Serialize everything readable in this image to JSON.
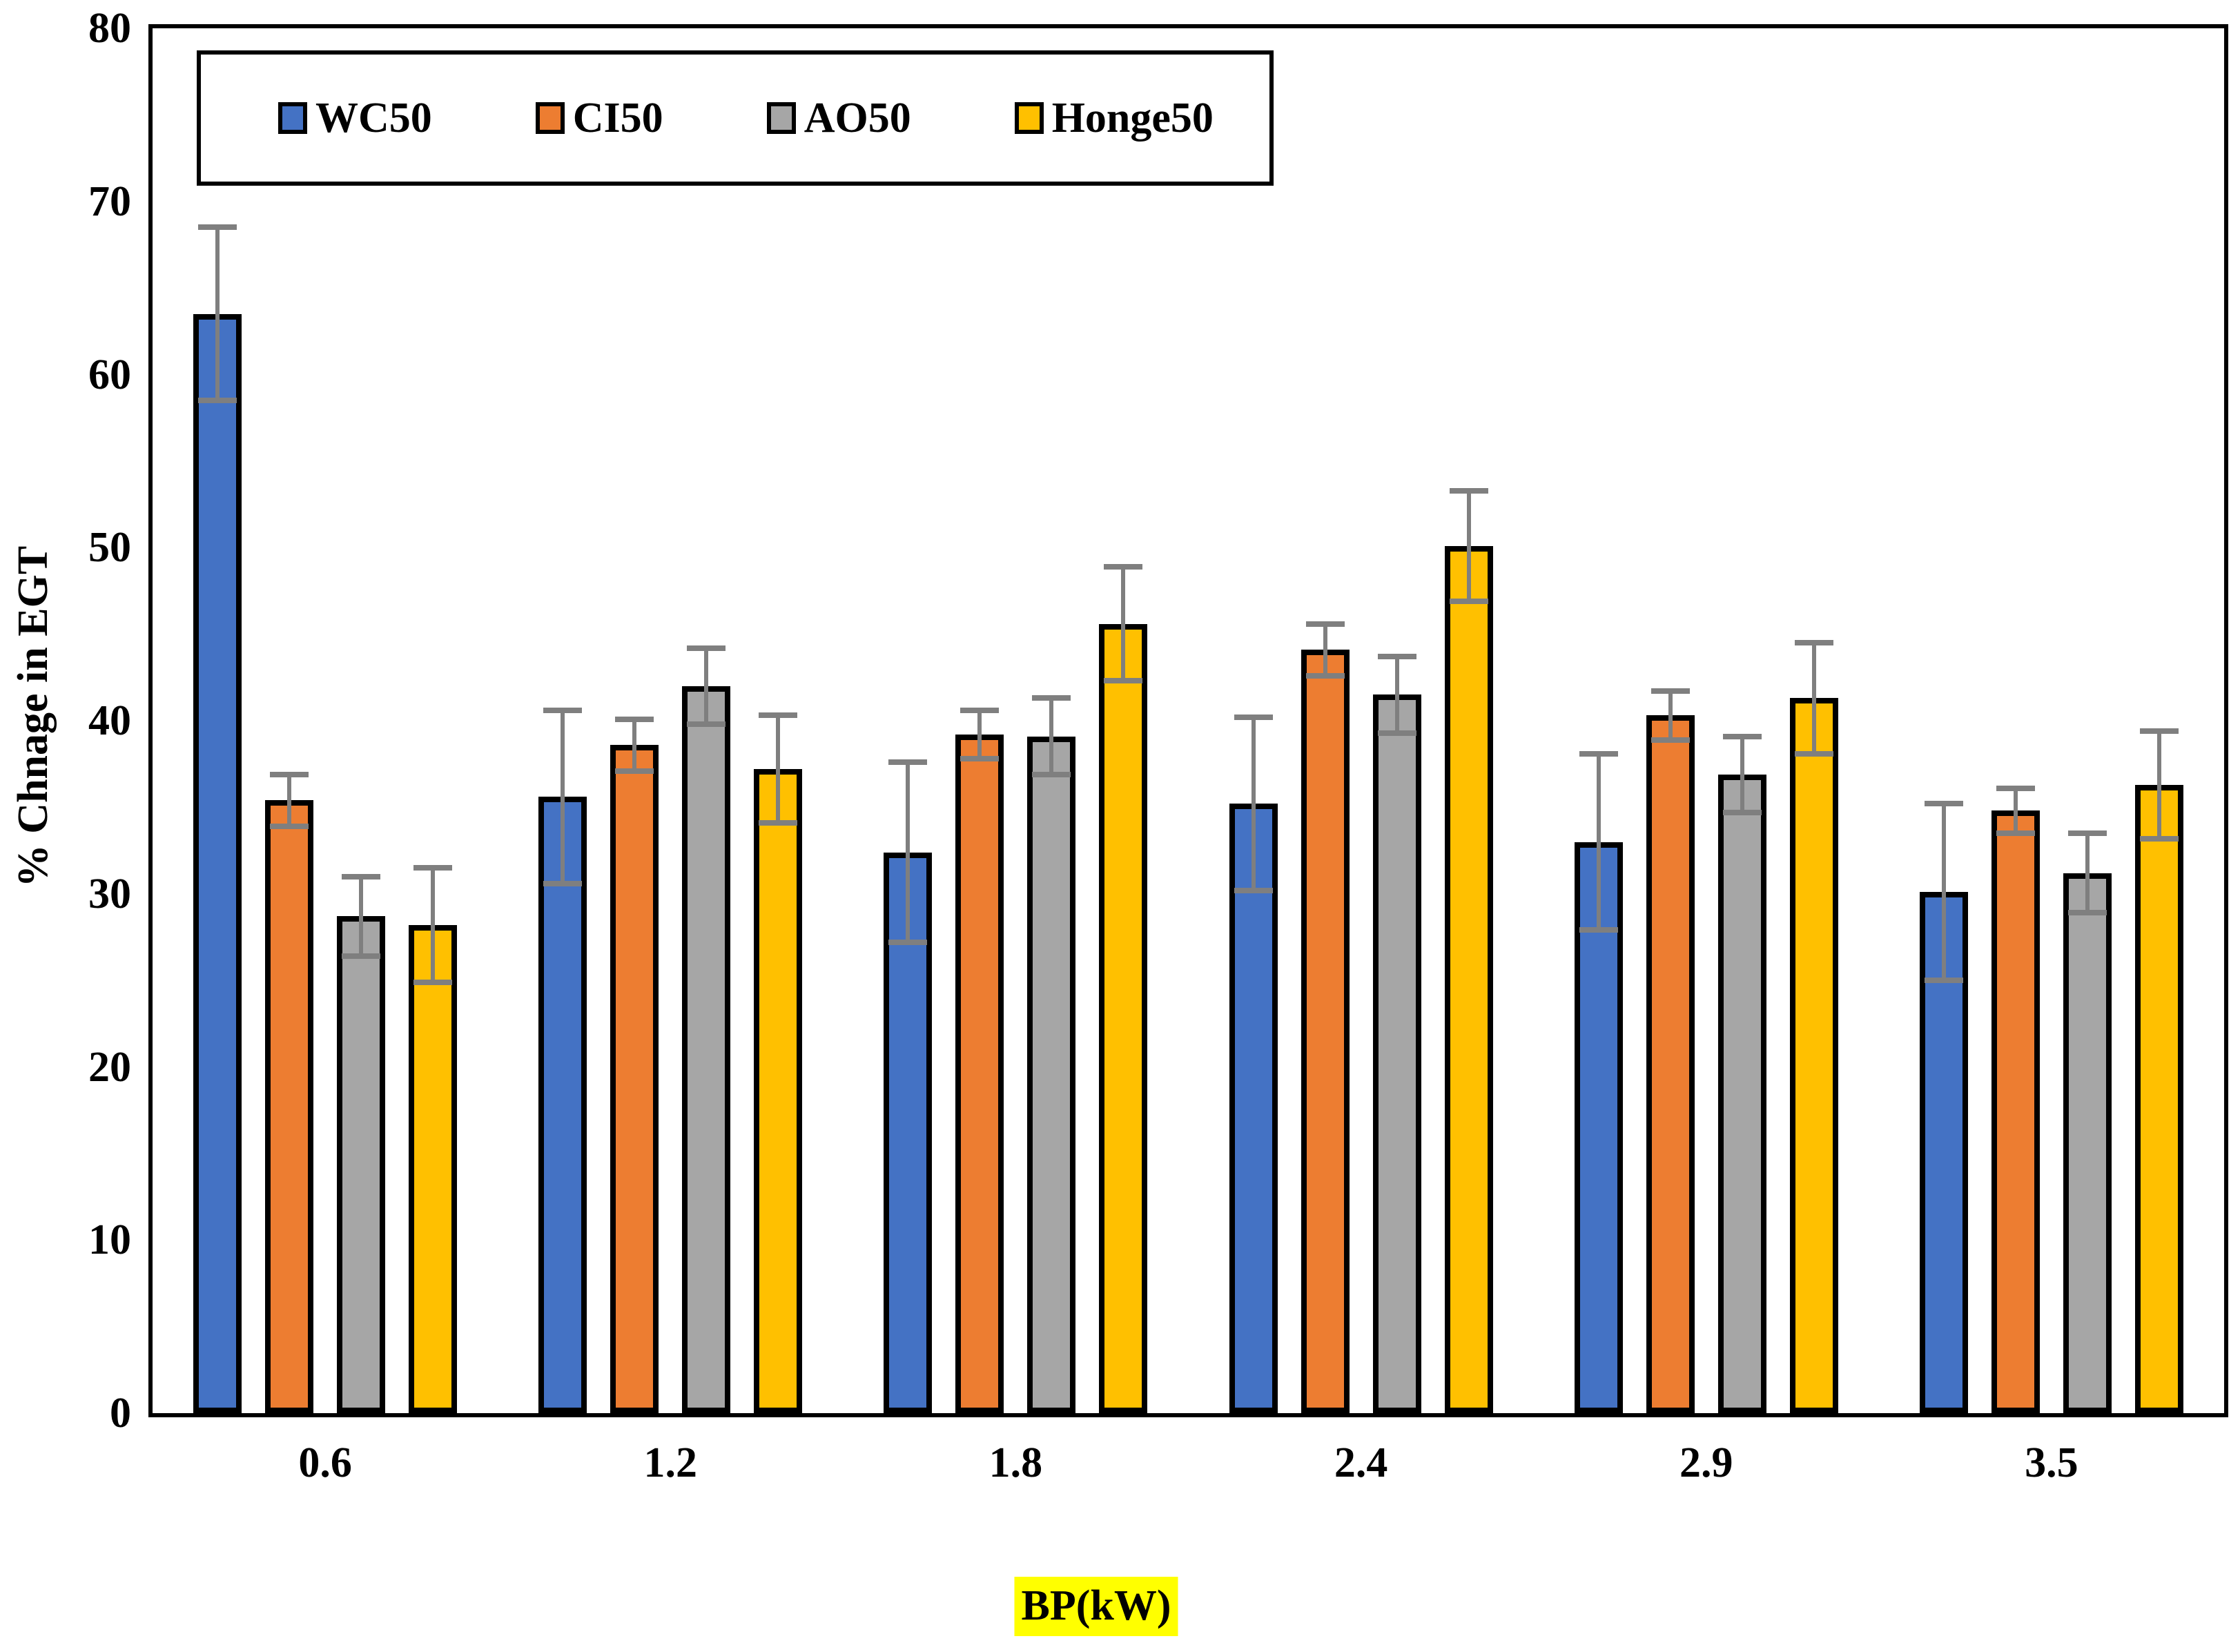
{
  "chart_data": {
    "type": "bar",
    "title": "",
    "xlabel": "BP(kW)",
    "ylabel": "% Chnage in EGT",
    "categories": [
      "0.6",
      "1.2",
      "1.8",
      "2.4",
      "2.9",
      "3.5"
    ],
    "series": [
      {
        "name": "WC50",
        "color": "#4472C4",
        "values": [
          63.5,
          35.6,
          32.4,
          35.2,
          33.0,
          30.1
        ],
        "errors": [
          5.0,
          5.0,
          5.2,
          5.0,
          5.1,
          5.1
        ]
      },
      {
        "name": "CI50",
        "color": "#ED7D31",
        "values": [
          35.4,
          38.6,
          39.2,
          44.1,
          40.3,
          34.8
        ],
        "errors": [
          1.5,
          1.5,
          1.4,
          1.5,
          1.4,
          1.3
        ]
      },
      {
        "name": "AO50",
        "color": "#A6A6A6",
        "values": [
          28.7,
          42.0,
          39.1,
          41.5,
          36.9,
          31.2
        ],
        "errors": [
          2.3,
          2.2,
          2.2,
          2.2,
          2.2,
          2.3
        ]
      },
      {
        "name": "Honge50",
        "color": "#FFC000",
        "values": [
          28.2,
          37.2,
          45.6,
          50.1,
          41.3,
          36.3
        ],
        "errors": [
          3.3,
          3.1,
          3.3,
          3.2,
          3.2,
          3.1
        ]
      }
    ],
    "ylim": [
      0,
      80
    ],
    "ytick_step": 10,
    "yticks": [
      0,
      10,
      20,
      30,
      40,
      50,
      60,
      70,
      80
    ],
    "grid": false,
    "legend_position": "top-left-inside",
    "bar_outline_color": "#000000",
    "error_bar_color": "#7f7f7f",
    "xlabel_highlight_color": "#FFFF00",
    "text_color": "#000000"
  }
}
